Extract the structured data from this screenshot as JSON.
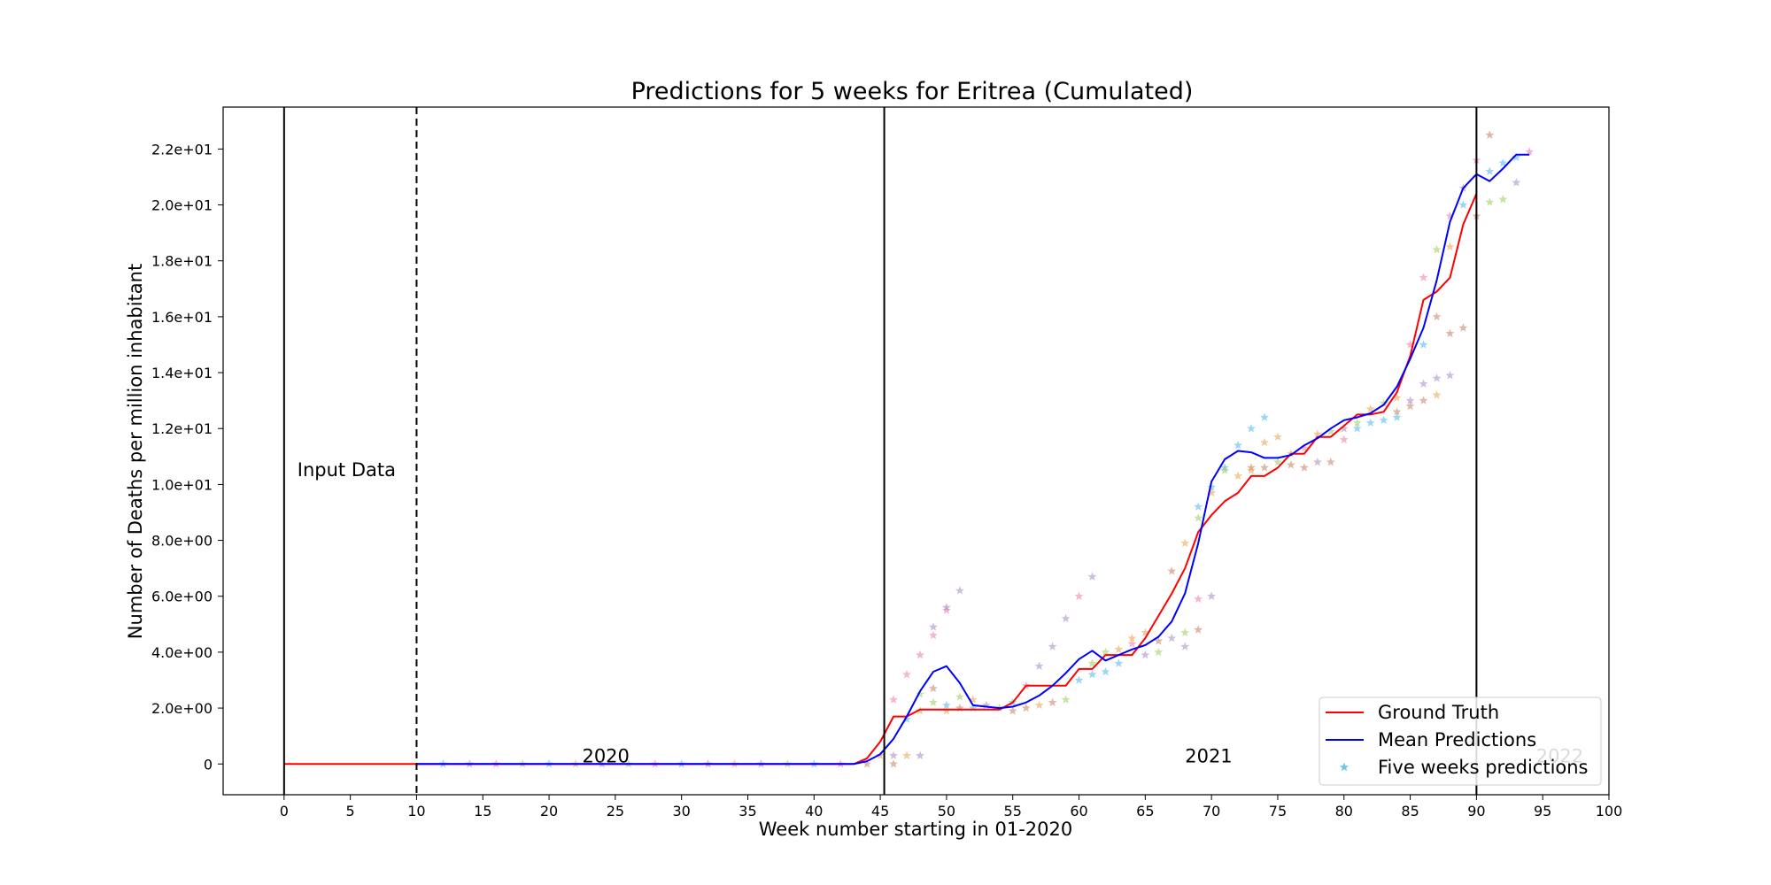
{
  "chart_data": {
    "type": "line",
    "title": "Predictions for 5 weeks for Eritrea (Cumulated)",
    "xlabel": "Week number starting in 01-2020",
    "ylabel": "Number of Deaths per million inhabitant",
    "xlim": [
      -4.6,
      100
    ],
    "ylim": [
      -1.1,
      23.5
    ],
    "x_ticks": [
      0,
      5,
      10,
      15,
      20,
      25,
      30,
      35,
      40,
      45,
      50,
      55,
      60,
      65,
      70,
      75,
      80,
      85,
      90,
      95,
      100
    ],
    "x_tick_labels": [
      "0",
      "5",
      "10",
      "15",
      "20",
      "25",
      "30",
      "35",
      "40",
      "45",
      "50",
      "55",
      "60",
      "65",
      "70",
      "75",
      "80",
      "85",
      "90",
      "95",
      "100"
    ],
    "y_ticks": [
      0,
      2,
      4,
      6,
      8,
      10,
      12,
      14,
      16,
      18,
      20,
      22
    ],
    "y_tick_labels": [
      "0",
      "2.0e+00",
      "4.0e+00",
      "6.0e+00",
      "8.0e+00",
      "1.0e+01",
      "1.2e+01",
      "1.4e+01",
      "1.6e+01",
      "1.8e+01",
      "2.0e+01",
      "2.2e+01"
    ],
    "grid": false,
    "legend_position": "bottom-right",
    "vertical_lines": [
      {
        "x": 0,
        "style": "solid"
      },
      {
        "x": 10,
        "style": "dashed"
      },
      {
        "x": 45.3,
        "style": "solid"
      },
      {
        "x": 90,
        "style": "solid"
      }
    ],
    "annotations": [
      {
        "text": "Input Data",
        "x": 1,
        "y": 10.3,
        "color": "#000000"
      },
      {
        "text": "2020",
        "x": 22.5,
        "y": 0.05,
        "color": "#000000"
      },
      {
        "text": "2021",
        "x": 68,
        "y": 0.05,
        "color": "#000000"
      },
      {
        "text": "2022",
        "x": 94.5,
        "y": 0.05,
        "color": "#bbbbbb"
      }
    ],
    "series": [
      {
        "name": "Ground Truth",
        "color": "#ff0000",
        "x": [
          0,
          43,
          44,
          45,
          46,
          47,
          48,
          49,
          50,
          51,
          52,
          53,
          54,
          55,
          56,
          57,
          58,
          59,
          60,
          61,
          62,
          63,
          64,
          65,
          66,
          67,
          68,
          69,
          70,
          71,
          72,
          73,
          74,
          75,
          76,
          77,
          78,
          79,
          80,
          81,
          82,
          83,
          84,
          85,
          86,
          87,
          88,
          89,
          90
        ],
        "y": [
          0,
          0,
          0.2,
          0.8,
          1.7,
          1.7,
          1.95,
          1.95,
          1.95,
          1.95,
          1.95,
          1.95,
          1.95,
          2.2,
          2.8,
          2.8,
          2.8,
          2.8,
          3.4,
          3.4,
          3.9,
          3.9,
          3.9,
          4.5,
          5.3,
          6.1,
          7.0,
          8.3,
          8.9,
          9.4,
          9.7,
          10.3,
          10.3,
          10.6,
          11.1,
          11.1,
          11.7,
          11.7,
          12.1,
          12.5,
          12.5,
          12.6,
          13.3,
          14.6,
          16.6,
          16.9,
          17.4,
          19.3,
          20.4
        ]
      },
      {
        "name": "Mean Predictions",
        "color": "#0000ff",
        "x": [
          10,
          43,
          44,
          45,
          46,
          47,
          48,
          49,
          50,
          51,
          52,
          53,
          54,
          55,
          56,
          57,
          58,
          59,
          60,
          61,
          62,
          63,
          64,
          65,
          66,
          67,
          68,
          69,
          70,
          71,
          72,
          73,
          74,
          75,
          76,
          77,
          78,
          79,
          80,
          81,
          82,
          83,
          84,
          85,
          86,
          87,
          88,
          89,
          90,
          91,
          92,
          93,
          94
        ],
        "y": [
          0,
          0,
          0.1,
          0.35,
          0.9,
          1.7,
          2.6,
          3.3,
          3.5,
          2.9,
          2.1,
          2.05,
          2.0,
          2.05,
          2.2,
          2.45,
          2.8,
          3.25,
          3.75,
          4.05,
          3.7,
          3.9,
          4.1,
          4.25,
          4.55,
          5.1,
          6.1,
          7.9,
          10.1,
          10.9,
          11.2,
          11.15,
          10.95,
          10.95,
          11.05,
          11.4,
          11.65,
          12.0,
          12.3,
          12.4,
          12.55,
          12.85,
          13.5,
          14.5,
          15.6,
          17.3,
          19.4,
          20.6,
          21.1,
          20.85,
          21.3,
          21.8,
          21.8
        ]
      }
    ],
    "scatter": {
      "name": "Five weeks predictions",
      "marker": "star",
      "legend_color": "#4db8e8",
      "colors": [
        "#4db8e8",
        "#f07aa8",
        "#e8a24d",
        "#9ccc5a",
        "#a58ac4",
        "#c98060"
      ],
      "points": [
        {
          "x": 12,
          "y": 0,
          "c": 0
        },
        {
          "x": 14,
          "y": 0,
          "c": 4
        },
        {
          "x": 16,
          "y": 0,
          "c": 1
        },
        {
          "x": 18,
          "y": 0,
          "c": 3
        },
        {
          "x": 20,
          "y": 0,
          "c": 0
        },
        {
          "x": 22,
          "y": 0,
          "c": 2
        },
        {
          "x": 24,
          "y": 0,
          "c": 4
        },
        {
          "x": 26,
          "y": 0,
          "c": 3
        },
        {
          "x": 28,
          "y": 0,
          "c": 1
        },
        {
          "x": 30,
          "y": 0,
          "c": 0
        },
        {
          "x": 32,
          "y": 0,
          "c": 5
        },
        {
          "x": 34,
          "y": 0,
          "c": 2
        },
        {
          "x": 36,
          "y": 0,
          "c": 4
        },
        {
          "x": 38,
          "y": 0,
          "c": 3
        },
        {
          "x": 40,
          "y": 0,
          "c": 0
        },
        {
          "x": 42,
          "y": 0,
          "c": 1
        },
        {
          "x": 44,
          "y": 0,
          "c": 5
        },
        {
          "x": 45,
          "y": 0.3,
          "c": 2
        },
        {
          "x": 46,
          "y": 2.3,
          "c": 1
        },
        {
          "x": 46,
          "y": 0.3,
          "c": 4
        },
        {
          "x": 46,
          "y": 0,
          "c": 5
        },
        {
          "x": 47,
          "y": 3.2,
          "c": 1
        },
        {
          "x": 47,
          "y": 1.6,
          "c": 0
        },
        {
          "x": 47,
          "y": 0.3,
          "c": 2
        },
        {
          "x": 48,
          "y": 3.9,
          "c": 1
        },
        {
          "x": 48,
          "y": 2.5,
          "c": 3
        },
        {
          "x": 48,
          "y": 1.9,
          "c": 2
        },
        {
          "x": 48,
          "y": 0.3,
          "c": 4
        },
        {
          "x": 49,
          "y": 4.6,
          "c": 1
        },
        {
          "x": 49,
          "y": 4.9,
          "c": 4
        },
        {
          "x": 49,
          "y": 2.7,
          "c": 5
        },
        {
          "x": 49,
          "y": 2.2,
          "c": 3
        },
        {
          "x": 50,
          "y": 5.5,
          "c": 1
        },
        {
          "x": 50,
          "y": 5.6,
          "c": 4
        },
        {
          "x": 50,
          "y": 2.1,
          "c": 0
        },
        {
          "x": 50,
          "y": 1.9,
          "c": 2
        },
        {
          "x": 51,
          "y": 6.2,
          "c": 4
        },
        {
          "x": 51,
          "y": 2.4,
          "c": 3
        },
        {
          "x": 51,
          "y": 2.0,
          "c": 5
        },
        {
          "x": 52,
          "y": 2.3,
          "c": 2
        },
        {
          "x": 52,
          "y": 2.0,
          "c": 0
        },
        {
          "x": 53,
          "y": 2.1,
          "c": 4
        },
        {
          "x": 54,
          "y": 2.0,
          "c": 3
        },
        {
          "x": 55,
          "y": 1.9,
          "c": 5
        },
        {
          "x": 55,
          "y": 2.2,
          "c": 0
        },
        {
          "x": 56,
          "y": 2.0,
          "c": 5
        },
        {
          "x": 56,
          "y": 2.8,
          "c": 1
        },
        {
          "x": 57,
          "y": 3.5,
          "c": 4
        },
        {
          "x": 57,
          "y": 2.1,
          "c": 2
        },
        {
          "x": 58,
          "y": 4.2,
          "c": 4
        },
        {
          "x": 58,
          "y": 2.2,
          "c": 5
        },
        {
          "x": 59,
          "y": 5.2,
          "c": 4
        },
        {
          "x": 59,
          "y": 2.3,
          "c": 3
        },
        {
          "x": 60,
          "y": 6.0,
          "c": 1
        },
        {
          "x": 60,
          "y": 3.0,
          "c": 0
        },
        {
          "x": 61,
          "y": 6.7,
          "c": 4
        },
        {
          "x": 61,
          "y": 3.2,
          "c": 0
        },
        {
          "x": 61,
          "y": 3.6,
          "c": 3
        },
        {
          "x": 62,
          "y": 4.0,
          "c": 3
        },
        {
          "x": 62,
          "y": 3.3,
          "c": 0
        },
        {
          "x": 63,
          "y": 4.1,
          "c": 2
        },
        {
          "x": 63,
          "y": 3.6,
          "c": 0
        },
        {
          "x": 64,
          "y": 4.5,
          "c": 2
        },
        {
          "x": 64,
          "y": 4.3,
          "c": 1
        },
        {
          "x": 65,
          "y": 4.7,
          "c": 2
        },
        {
          "x": 65,
          "y": 3.9,
          "c": 4
        },
        {
          "x": 66,
          "y": 4.4,
          "c": 5
        },
        {
          "x": 66,
          "y": 4.0,
          "c": 3
        },
        {
          "x": 67,
          "y": 6.9,
          "c": 5
        },
        {
          "x": 67,
          "y": 4.5,
          "c": 4
        },
        {
          "x": 68,
          "y": 7.9,
          "c": 2
        },
        {
          "x": 68,
          "y": 4.7,
          "c": 3
        },
        {
          "x": 68,
          "y": 4.2,
          "c": 4
        },
        {
          "x": 69,
          "y": 9.2,
          "c": 0
        },
        {
          "x": 69,
          "y": 8.8,
          "c": 3
        },
        {
          "x": 69,
          "y": 5.9,
          "c": 1
        },
        {
          "x": 69,
          "y": 4.8,
          "c": 5
        },
        {
          "x": 70,
          "y": 9.9,
          "c": 0
        },
        {
          "x": 70,
          "y": 9.7,
          "c": 2
        },
        {
          "x": 70,
          "y": 6.0,
          "c": 4
        },
        {
          "x": 71,
          "y": 10.6,
          "c": 0
        },
        {
          "x": 71,
          "y": 10.5,
          "c": 3
        },
        {
          "x": 72,
          "y": 11.4,
          "c": 0
        },
        {
          "x": 72,
          "y": 10.3,
          "c": 2
        },
        {
          "x": 73,
          "y": 12.0,
          "c": 0
        },
        {
          "x": 73,
          "y": 10.6,
          "c": 5
        },
        {
          "x": 73,
          "y": 10.5,
          "c": 2
        },
        {
          "x": 74,
          "y": 12.4,
          "c": 0
        },
        {
          "x": 74,
          "y": 11.5,
          "c": 2
        },
        {
          "x": 74,
          "y": 10.6,
          "c": 5
        },
        {
          "x": 75,
          "y": 11.7,
          "c": 2
        },
        {
          "x": 75,
          "y": 10.8,
          "c": 3
        },
        {
          "x": 76,
          "y": 11.1,
          "c": 2
        },
        {
          "x": 76,
          "y": 10.7,
          "c": 5
        },
        {
          "x": 77,
          "y": 11.3,
          "c": 1
        },
        {
          "x": 77,
          "y": 10.6,
          "c": 5
        },
        {
          "x": 78,
          "y": 11.8,
          "c": 2
        },
        {
          "x": 78,
          "y": 10.8,
          "c": 4
        },
        {
          "x": 79,
          "y": 11.9,
          "c": 3
        },
        {
          "x": 79,
          "y": 10.8,
          "c": 5
        },
        {
          "x": 80,
          "y": 12.0,
          "c": 4
        },
        {
          "x": 80,
          "y": 11.6,
          "c": 1
        },
        {
          "x": 81,
          "y": 12.2,
          "c": 3
        },
        {
          "x": 81,
          "y": 12.0,
          "c": 0
        },
        {
          "x": 82,
          "y": 12.7,
          "c": 2
        },
        {
          "x": 82,
          "y": 12.2,
          "c": 0
        },
        {
          "x": 83,
          "y": 12.9,
          "c": 3
        },
        {
          "x": 83,
          "y": 12.3,
          "c": 0
        },
        {
          "x": 84,
          "y": 13.1,
          "c": 2
        },
        {
          "x": 84,
          "y": 12.4,
          "c": 0
        },
        {
          "x": 84,
          "y": 12.6,
          "c": 5
        },
        {
          "x": 85,
          "y": 15.0,
          "c": 1
        },
        {
          "x": 85,
          "y": 12.8,
          "c": 5
        },
        {
          "x": 85,
          "y": 13.0,
          "c": 4
        },
        {
          "x": 86,
          "y": 17.4,
          "c": 1
        },
        {
          "x": 86,
          "y": 15.0,
          "c": 0
        },
        {
          "x": 86,
          "y": 13.6,
          "c": 4
        },
        {
          "x": 86,
          "y": 13.0,
          "c": 5
        },
        {
          "x": 87,
          "y": 18.4,
          "c": 3
        },
        {
          "x": 87,
          "y": 16.0,
          "c": 5
        },
        {
          "x": 87,
          "y": 13.8,
          "c": 4
        },
        {
          "x": 87,
          "y": 13.2,
          "c": 2
        },
        {
          "x": 88,
          "y": 19.6,
          "c": 1
        },
        {
          "x": 88,
          "y": 18.5,
          "c": 2
        },
        {
          "x": 88,
          "y": 15.4,
          "c": 5
        },
        {
          "x": 88,
          "y": 13.9,
          "c": 4
        },
        {
          "x": 89,
          "y": 20.6,
          "c": 4
        },
        {
          "x": 89,
          "y": 20.0,
          "c": 0
        },
        {
          "x": 89,
          "y": 15.6,
          "c": 5
        },
        {
          "x": 90,
          "y": 21.6,
          "c": 1
        },
        {
          "x": 90,
          "y": 19.6,
          "c": 5
        },
        {
          "x": 91,
          "y": 22.5,
          "c": 5
        },
        {
          "x": 91,
          "y": 21.2,
          "c": 0
        },
        {
          "x": 91,
          "y": 20.1,
          "c": 3
        },
        {
          "x": 92,
          "y": 21.5,
          "c": 0
        },
        {
          "x": 92,
          "y": 20.2,
          "c": 3
        },
        {
          "x": 93,
          "y": 21.7,
          "c": 0
        },
        {
          "x": 93,
          "y": 20.8,
          "c": 4
        },
        {
          "x": 94,
          "y": 21.9,
          "c": 1
        }
      ]
    }
  }
}
